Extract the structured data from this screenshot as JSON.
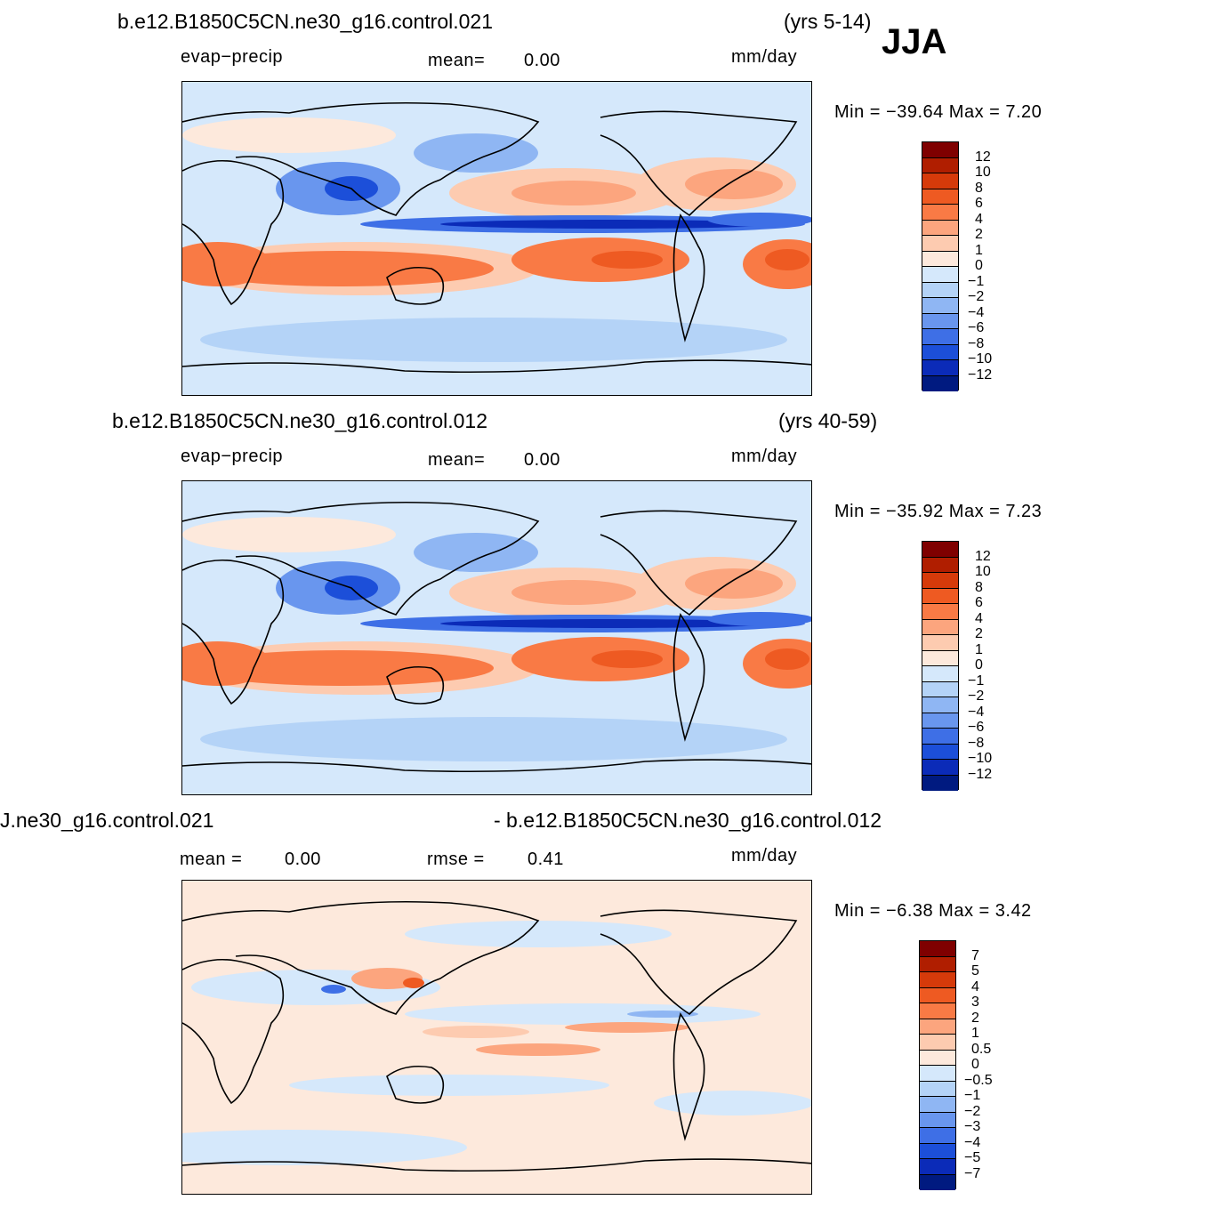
{
  "season": "JJA",
  "panels": [
    {
      "case": "b.e12.B1850C5CN.ne30_g16.control.021",
      "years": "(yrs 5-14)",
      "variable": "evap−precip",
      "mean_text": "mean=",
      "mean_value": "0.00",
      "units": "mm/day",
      "minmax": "Min  =  −39.64  Max  =      7.20",
      "colorbar_labels": [
        "12",
        "10",
        "8",
        "6",
        "4",
        "2",
        "1",
        "0",
        "−1",
        "−2",
        "−4",
        "−6",
        "−8",
        "−10",
        "−12"
      ]
    },
    {
      "case": "b.e12.B1850C5CN.ne30_g16.control.012",
      "years": "(yrs 40-59)",
      "variable": "evap−precip",
      "mean_text": "mean=",
      "mean_value": "0.00",
      "units": "mm/day",
      "minmax": "Min  =  −35.92  Max  =      7.23",
      "colorbar_labels": [
        "12",
        "10",
        "8",
        "6",
        "4",
        "2",
        "1",
        "0",
        "−1",
        "−2",
        "−4",
        "−6",
        "−8",
        "−10",
        "−12"
      ]
    },
    {
      "case_left": "J.ne30_g16.control.021",
      "case_right": "- b.e12.B1850C5CN.ne30_g16.control.012",
      "mean_text": "mean  =",
      "mean_value": "0.00",
      "rmse_text": "rmse  =",
      "rmse_value": "0.41",
      "units": "mm/day",
      "minmax": "Min  =     −6.38  Max  =      3.42",
      "colorbar_labels": [
        "7",
        "5",
        "4",
        "3",
        "2",
        "1",
        "0.5",
        "0",
        "−0.5",
        "−1",
        "−2",
        "−3",
        "−4",
        "−5",
        "−7"
      ]
    }
  ],
  "colors": {
    "scale16": [
      "#7f0000",
      "#b01e00",
      "#d63a0a",
      "#ee5a22",
      "#f97a45",
      "#fca57e",
      "#fdcbb0",
      "#fde9dc",
      "#d5e8fb",
      "#b4d3f7",
      "#8fb6f3",
      "#6996ee",
      "#3e6fe6",
      "#1c4fd9",
      "#0b2bb8",
      "#001a80"
    ],
    "ocean": "#d5e8fb"
  }
}
